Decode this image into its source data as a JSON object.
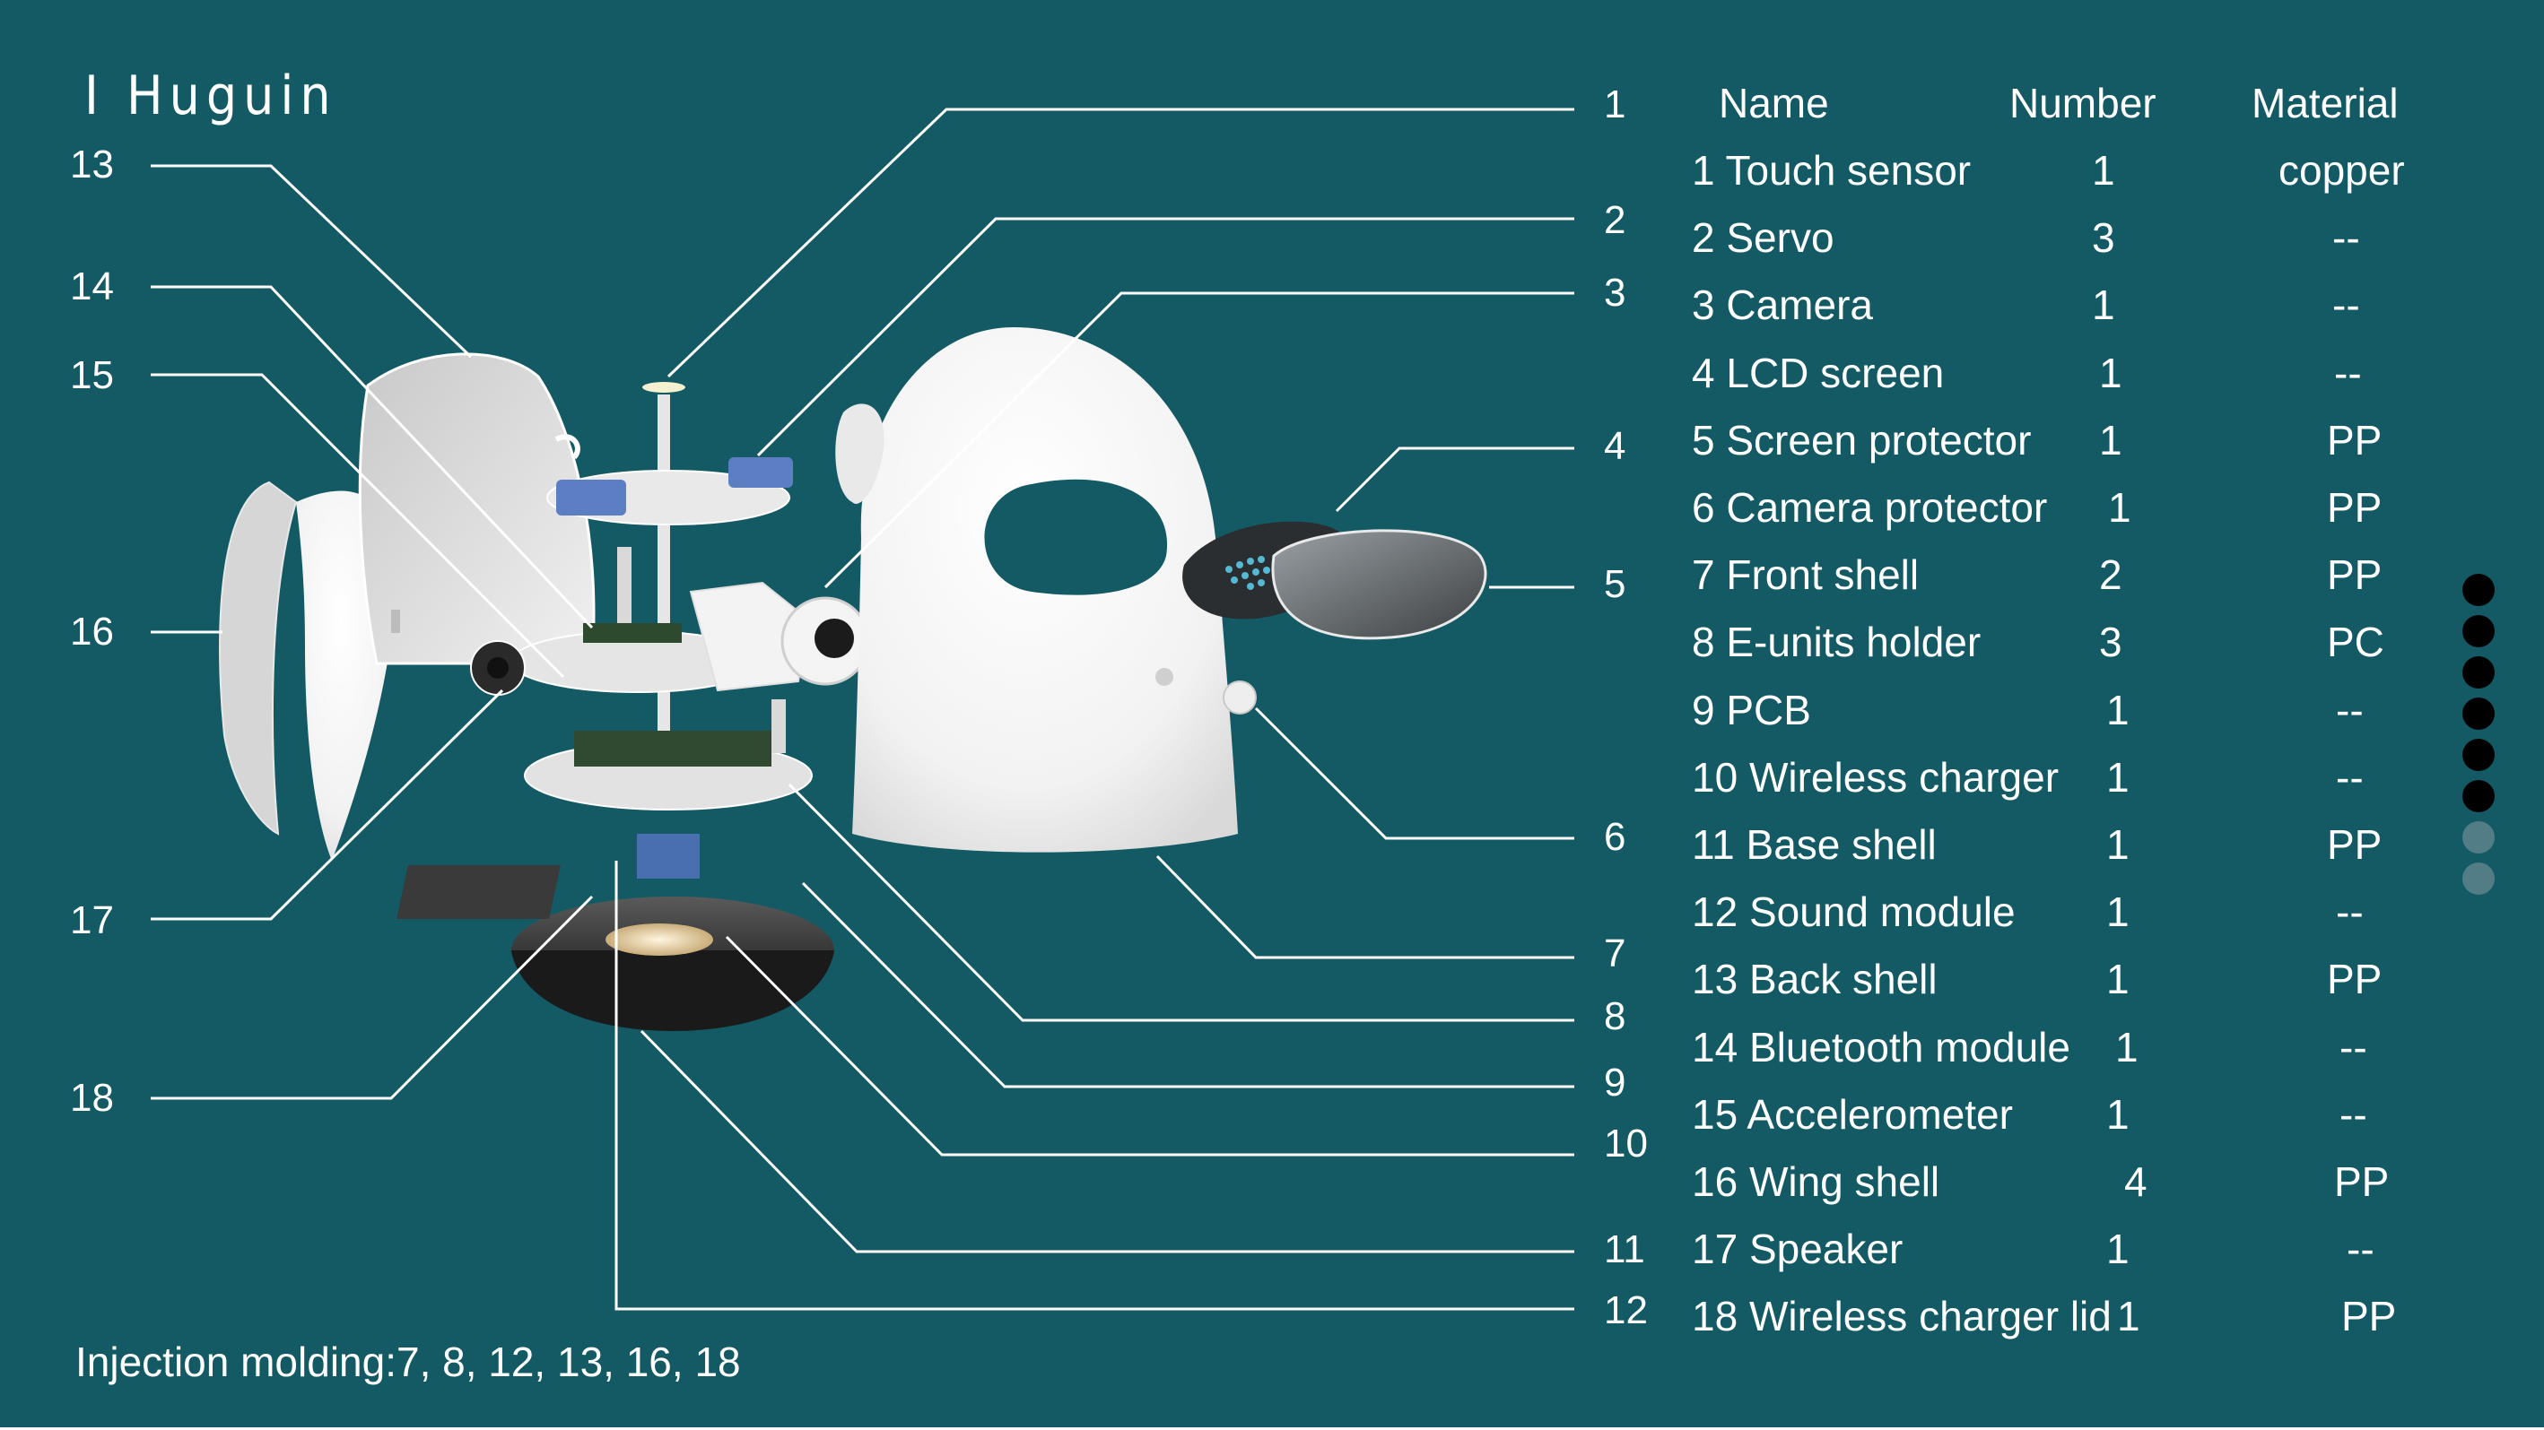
{
  "colors": {
    "background": "#135a64",
    "line": "#ffffff",
    "dot_filled": "#000000",
    "dot_empty": "#537d86"
  },
  "title": "I Huguin",
  "callouts_right": [
    "1",
    "2",
    "3",
    "4",
    "5",
    "6",
    "7",
    "8",
    "9",
    "10",
    "11",
    "12"
  ],
  "callouts_left": [
    "13",
    "14",
    "15",
    "16",
    "17",
    "18"
  ],
  "table": {
    "headers": {
      "name": "Name",
      "number": "Number",
      "material": "Material"
    },
    "rows": [
      {
        "name": "1 Touch sensor",
        "number": "1",
        "material": "copper"
      },
      {
        "name": "2 Servo",
        "number": "3",
        "material": "--"
      },
      {
        "name": "3 Camera",
        "number": "1",
        "material": "--"
      },
      {
        "name": "4 LCD screen",
        "number": "1",
        "material": "--"
      },
      {
        "name": "5 Screen protector",
        "number": "1",
        "material": "PP"
      },
      {
        "name": "6 Camera  protector",
        "number": "1",
        "material": "PP"
      },
      {
        "name": "7 Front shell",
        "number": "2",
        "material": "PP"
      },
      {
        "name": "8 E-units holder",
        "number": "3",
        "material": "PC"
      },
      {
        "name": "9 PCB",
        "number": "1",
        "material": "--"
      },
      {
        "name": "10 Wireless charger",
        "number": "1",
        "material": "--"
      },
      {
        "name": "11 Base shell",
        "number": "1",
        "material": "PP"
      },
      {
        "name": "12 Sound module",
        "number": "1",
        "material": "--"
      },
      {
        "name": "13 Back shell",
        "number": "1",
        "material": "PP"
      },
      {
        "name": "14 Bluetooth module",
        "number": "1",
        "material": "--"
      },
      {
        "name": "15 Accelerometer",
        "number": "1",
        "material": "--"
      },
      {
        "name": "16 Wing shell",
        "number": "4",
        "material": "PP"
      },
      {
        "name": "17 Speaker",
        "number": "1",
        "material": "--"
      },
      {
        "name": "18 Wireless charger lid",
        "number": "1",
        "material": "PP"
      }
    ]
  },
  "footnote": "Injection molding:7, 8, 12, 13, 16, 18",
  "page_dots": {
    "filled": 6,
    "empty": 2
  }
}
